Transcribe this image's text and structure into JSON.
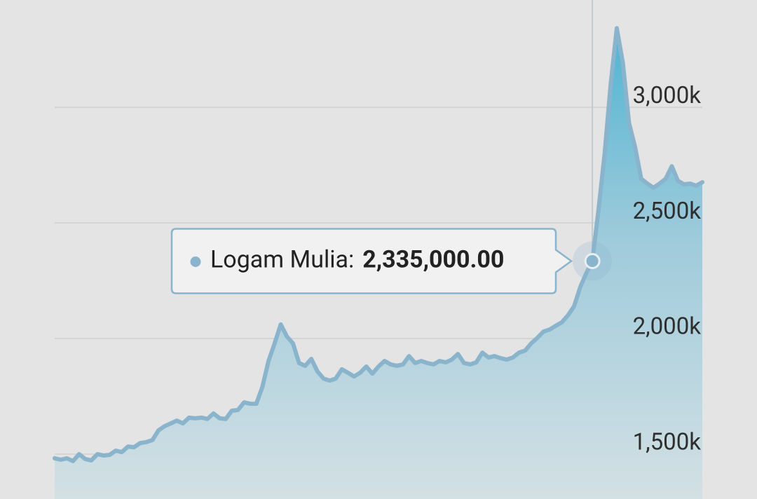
{
  "chart_data": {
    "type": "area",
    "series": [
      {
        "name": "Logam Mulia",
        "color": "#8ab4cc",
        "values": [
          1482000,
          1476000,
          1482000,
          1470000,
          1500000,
          1479000,
          1473000,
          1500000,
          1494000,
          1497000,
          1515000,
          1509000,
          1533000,
          1530000,
          1548000,
          1552000,
          1561000,
          1603000,
          1621000,
          1633000,
          1645000,
          1633000,
          1658000,
          1655000,
          1658000,
          1652000,
          1676000,
          1655000,
          1652000,
          1688000,
          1691000,
          1724000,
          1718000,
          1718000,
          1791000,
          1903000,
          1979000,
          2061000,
          2009000,
          1979000,
          1894000,
          1882000,
          1912000,
          1858000,
          1827000,
          1818000,
          1827000,
          1867000,
          1852000,
          1836000,
          1852000,
          1879000,
          1848000,
          1879000,
          1903000,
          1888000,
          1882000,
          1888000,
          1924000,
          1894000,
          1903000,
          1894000,
          1888000,
          1903000,
          1897000,
          1909000,
          1933000,
          1894000,
          1888000,
          1897000,
          1939000,
          1918000,
          1924000,
          1915000,
          1909000,
          1918000,
          1939000,
          1948000,
          1979000,
          2003000,
          2030000,
          2039000,
          2055000,
          2070000,
          2100000,
          2139000,
          2221000,
          2282000,
          2335000,
          2555000,
          2797000,
          3100000,
          3342000,
          3191000,
          2933000,
          2827000,
          2691000,
          2670000,
          2652000,
          2670000,
          2691000,
          2745000,
          2682000,
          2667000,
          2670000,
          2661000,
          2676000
        ]
      }
    ],
    "ylim": [
      1306000,
      3464000
    ],
    "yticks": [
      {
        "value": 1500000,
        "label": "1,500k"
      },
      {
        "value": 2000000,
        "label": "2,000k"
      },
      {
        "value": 2500000,
        "label": "2,500k"
      },
      {
        "value": 3000000,
        "label": "3,000k"
      }
    ],
    "grid": true,
    "tooltip": {
      "label": "Logam Mulia:",
      "value": 2335000,
      "value_label": "2,335,000.00"
    }
  }
}
